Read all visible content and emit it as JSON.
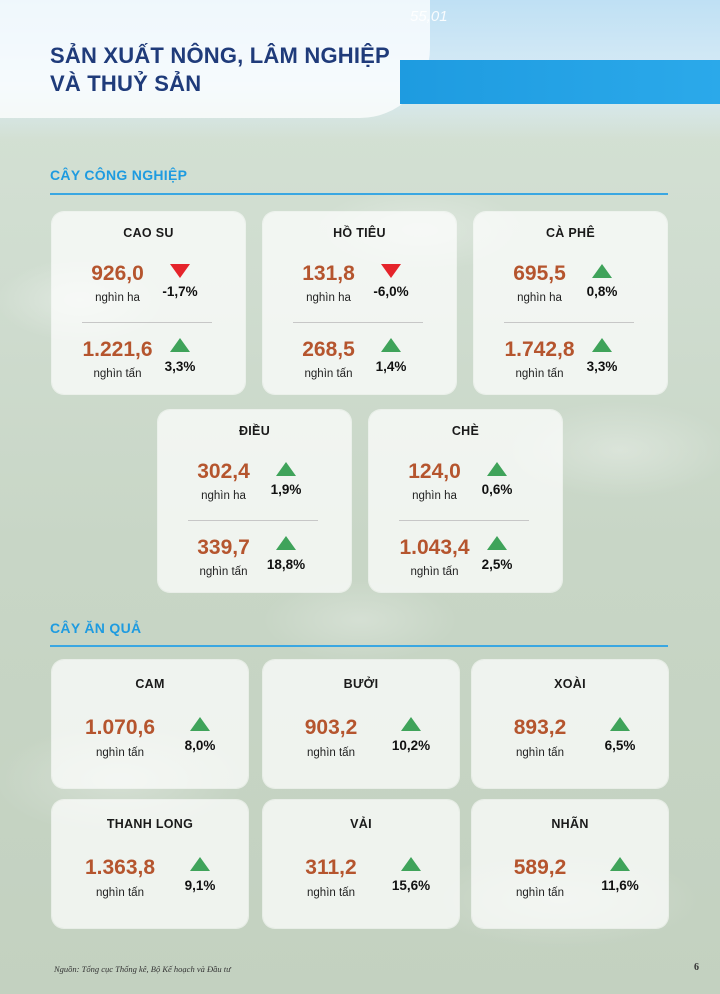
{
  "header": {
    "title_line1": "SẢN XUẤT NÔNG, LÂM NGHIỆP",
    "title_line2": "VÀ THUỶ SẢN",
    "ghost_text": "55,01"
  },
  "colors": {
    "title": "#1f3b7a",
    "accent": "#1e9be0",
    "value": "#b5552e",
    "up": "#3fa35a",
    "down": "#e5242b"
  },
  "industrial": {
    "heading": "CÂY CÔNG NGHIỆP",
    "cards": [
      {
        "name": "CAO SU",
        "area": {
          "value": "926,0",
          "unit": "nghìn ha",
          "change": "-1,7%",
          "trend": "down"
        },
        "output": {
          "value": "1.221,6",
          "unit": "nghìn tấn",
          "change": "3,3%",
          "trend": "up"
        }
      },
      {
        "name": "HỒ TIÊU",
        "area": {
          "value": "131,8",
          "unit": "nghìn ha",
          "change": "-6,0%",
          "trend": "down"
        },
        "output": {
          "value": "268,5",
          "unit": "nghìn tấn",
          "change": "1,4%",
          "trend": "up"
        }
      },
      {
        "name": "CÀ PHÊ",
        "area": {
          "value": "695,5",
          "unit": "nghìn ha",
          "change": "0,8%",
          "trend": "up"
        },
        "output": {
          "value": "1.742,8",
          "unit": "nghìn tấn",
          "change": "3,3%",
          "trend": "up"
        }
      },
      {
        "name": "ĐIỀU",
        "area": {
          "value": "302,4",
          "unit": "nghìn ha",
          "change": "1,9%",
          "trend": "up"
        },
        "output": {
          "value": "339,7",
          "unit": "nghìn tấn",
          "change": "18,8%",
          "trend": "up"
        }
      },
      {
        "name": "CHÈ",
        "area": {
          "value": "124,0",
          "unit": "nghìn ha",
          "change": "0,6%",
          "trend": "up"
        },
        "output": {
          "value": "1.043,4",
          "unit": "nghìn tấn",
          "change": "2,5%",
          "trend": "up"
        }
      }
    ]
  },
  "fruit": {
    "heading": "CÂY ĂN QUẢ",
    "cards": [
      {
        "name": "CAM",
        "value": "1.070,6",
        "unit": "nghìn tấn",
        "change": "8,0%",
        "trend": "up"
      },
      {
        "name": "BƯỞI",
        "value": "903,2",
        "unit": "nghìn tấn",
        "change": "10,2%",
        "trend": "up"
      },
      {
        "name": "XOÀI",
        "value": "893,2",
        "unit": "nghìn tấn",
        "change": "6,5%",
        "trend": "up"
      },
      {
        "name": "THANH LONG",
        "value": "1.363,8",
        "unit": "nghìn tấn",
        "change": "9,1%",
        "trend": "up"
      },
      {
        "name": "VẢI",
        "value": "311,2",
        "unit": "nghìn tấn",
        "change": "15,6%",
        "trend": "up"
      },
      {
        "name": "NHÃN",
        "value": "589,2",
        "unit": "nghìn tấn",
        "change": "11,6%",
        "trend": "up"
      }
    ]
  },
  "footer": {
    "source": "Nguồn: Tổng cục Thống kê, Bộ Kế hoạch và Đầu tư",
    "page_number": "6"
  }
}
